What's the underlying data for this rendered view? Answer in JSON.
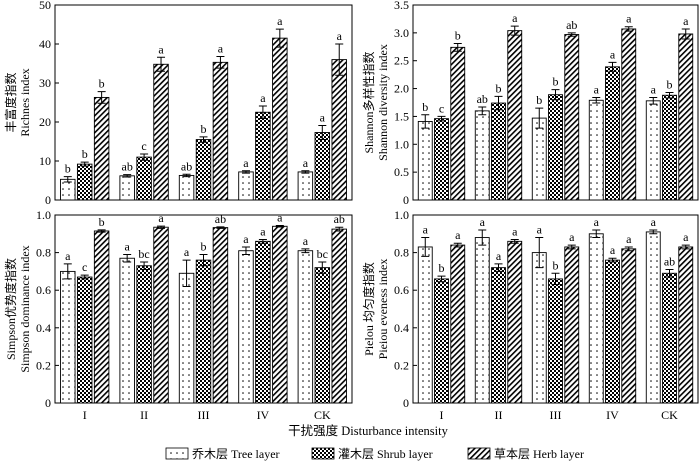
{
  "figure": {
    "xlabel": "干扰强度 Disturbance intensity",
    "categories": [
      "I",
      "II",
      "III",
      "IV",
      "CK"
    ],
    "legend": [
      {
        "label": "乔木层 Tree layer",
        "pattern": "dots"
      },
      {
        "label": "灌木层 Shrub layer",
        "pattern": "checker"
      },
      {
        "label": "草本层 Herb layer",
        "pattern": "hatch"
      }
    ]
  },
  "chart_data": [
    {
      "type": "bar",
      "ylabel_cn": "丰富度指数",
      "ylabel_en": "Richnes index",
      "ylim": [
        0,
        50
      ],
      "yticks": [
        "0",
        "10",
        "20",
        "30",
        "40",
        "50"
      ],
      "categories": [
        "I",
        "II",
        "III",
        "IV",
        "CK"
      ],
      "series": [
        {
          "name": "乔木层 Tree layer",
          "values": [
            5.3,
            6.2,
            6.3,
            7.2,
            7.2
          ],
          "errors": [
            0.7,
            0.3,
            0.3,
            0.3,
            0.3
          ],
          "letters": [
            "b",
            "ab",
            "ab",
            "a",
            "a"
          ]
        },
        {
          "name": "灌木层 Shrub layer",
          "values": [
            9.2,
            11.0,
            15.5,
            22.5,
            17.3
          ],
          "errors": [
            0.5,
            0.8,
            0.7,
            1.6,
            1.8
          ],
          "letters": [
            "b",
            "c",
            "b",
            "a",
            "a"
          ]
        },
        {
          "name": "草本层 Herb layer",
          "values": [
            26.3,
            34.8,
            35.3,
            41.5,
            36.0
          ],
          "errors": [
            1.5,
            1.8,
            1.5,
            2.3,
            4.0
          ],
          "letters": [
            "b",
            "a",
            "a",
            "a",
            "a"
          ]
        }
      ]
    },
    {
      "type": "bar",
      "ylabel_cn": "Shannon多样性指数",
      "ylabel_en": "Shannon diversity index",
      "ylim": [
        0,
        3.5
      ],
      "yticks": [
        "0",
        "0.5",
        "1.0",
        "1.5",
        "2.0",
        "2.5",
        "3.0",
        "3.5"
      ],
      "categories": [
        "I",
        "II",
        "III",
        "IV",
        "CK"
      ],
      "series": [
        {
          "name": "乔木层 Tree layer",
          "values": [
            1.41,
            1.6,
            1.47,
            1.79,
            1.78
          ],
          "errors": [
            0.12,
            0.07,
            0.18,
            0.05,
            0.06
          ],
          "letters": [
            "b",
            "ab",
            "b",
            "a",
            "a"
          ]
        },
        {
          "name": "灌木层 Shrub layer",
          "values": [
            1.46,
            1.74,
            1.89,
            2.39,
            1.88
          ],
          "errors": [
            0.04,
            0.12,
            0.09,
            0.08,
            0.05
          ],
          "letters": [
            "c",
            "b",
            "b",
            "a",
            "b"
          ]
        },
        {
          "name": "草本层 Herb layer",
          "values": [
            2.74,
            3.04,
            2.97,
            3.07,
            2.98
          ],
          "errors": [
            0.07,
            0.08,
            0.03,
            0.04,
            0.09
          ],
          "letters": [
            "b",
            "a",
            "ab",
            "a",
            "a"
          ]
        }
      ]
    },
    {
      "type": "bar",
      "ylabel_cn": "Simpson优势度指数",
      "ylabel_en": "Simpson dominance index",
      "ylim": [
        0,
        1.0
      ],
      "yticks": [
        "0",
        "0.2",
        "0.4",
        "0.6",
        "0.8",
        "1.0"
      ],
      "categories": [
        "I",
        "II",
        "III",
        "IV",
        "CK"
      ],
      "series": [
        {
          "name": "乔木层 Tree layer",
          "values": [
            0.7,
            0.77,
            0.69,
            0.81,
            0.81
          ],
          "errors": [
            0.04,
            0.02,
            0.07,
            0.02,
            0.01
          ],
          "letters": [
            "a",
            "a",
            "a",
            "a",
            "a"
          ]
        },
        {
          "name": "灌木层 Shrub layer",
          "values": [
            0.67,
            0.73,
            0.76,
            0.86,
            0.72
          ],
          "errors": [
            0.01,
            0.02,
            0.03,
            0.01,
            0.03
          ],
          "letters": [
            "c",
            "bc",
            "b",
            "a",
            "bc"
          ]
        },
        {
          "name": "草本层 Herb layer",
          "values": [
            0.915,
            0.935,
            0.933,
            0.94,
            0.925
          ],
          "errors": [
            0.006,
            0.006,
            0.004,
            0.004,
            0.01
          ],
          "letters": [
            "b",
            "a",
            "ab",
            "a",
            "ab"
          ]
        }
      ]
    },
    {
      "type": "bar",
      "ylabel_cn": "Pielou 均匀度指数",
      "ylabel_en": "Pieiou eveness index",
      "ylim": [
        0,
        1.0
      ],
      "yticks": [
        "0",
        "0.2",
        "0.4",
        "0.6",
        "0.8",
        "1.0"
      ],
      "categories": [
        "I",
        "II",
        "III",
        "IV",
        "CK"
      ],
      "series": [
        {
          "name": "乔木层 Tree layer",
          "values": [
            0.83,
            0.88,
            0.8,
            0.9,
            0.91
          ],
          "errors": [
            0.05,
            0.04,
            0.08,
            0.02,
            0.01
          ],
          "letters": [
            "a",
            "a",
            "a",
            "a",
            "a"
          ]
        },
        {
          "name": "灌木层 Shrub layer",
          "values": [
            0.66,
            0.72,
            0.66,
            0.76,
            0.69
          ],
          "errors": [
            0.015,
            0.02,
            0.03,
            0.01,
            0.02
          ],
          "letters": [
            "b",
            "a",
            "b",
            "a",
            "ab"
          ]
        },
        {
          "name": "草本层 Herb layer",
          "values": [
            0.84,
            0.86,
            0.83,
            0.82,
            0.83
          ],
          "errors": [
            0.01,
            0.01,
            0.01,
            0.01,
            0.01
          ],
          "letters": [
            "a",
            "a",
            "a",
            "a",
            "a"
          ]
        }
      ]
    }
  ]
}
